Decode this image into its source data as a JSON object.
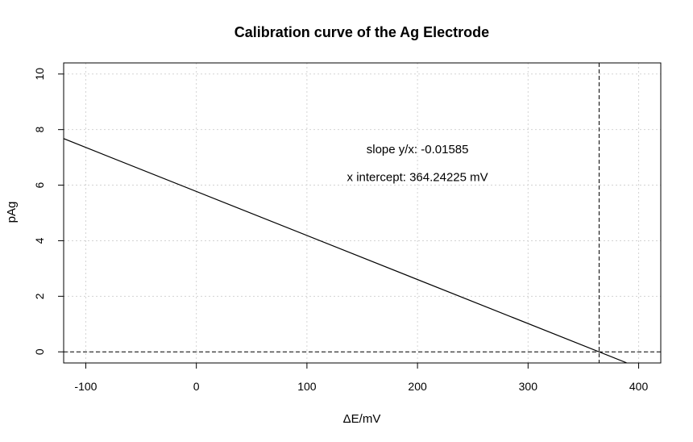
{
  "chart_data": {
    "type": "line",
    "title": "Calibration curve of the Ag Electrode",
    "xlabel": "ΔE/mV",
    "ylabel": "pAg",
    "xlim": [
      -120,
      420
    ],
    "ylim": [
      -0.4,
      10.4
    ],
    "x_ticks": [
      -100,
      0,
      100,
      200,
      300,
      400
    ],
    "y_ticks": [
      0,
      2,
      4,
      6,
      8,
      10
    ],
    "grid": true,
    "series": [
      {
        "x": [
          -120,
          389
        ],
        "y": [
          7.675,
          -0.393
        ]
      }
    ],
    "reference_lines": {
      "vertical_x": 364.24225,
      "horizontal_y": 0
    },
    "annotations": [
      {
        "text": "slope y/x: -0.01585",
        "x": 200,
        "y": 7.0
      },
      {
        "text": "x intercept: 364.24225 mV",
        "x": 200,
        "y": 6.0
      }
    ],
    "colors": {
      "line": "#000000",
      "grid": "#d3d3d3",
      "reference": "#000000"
    }
  }
}
